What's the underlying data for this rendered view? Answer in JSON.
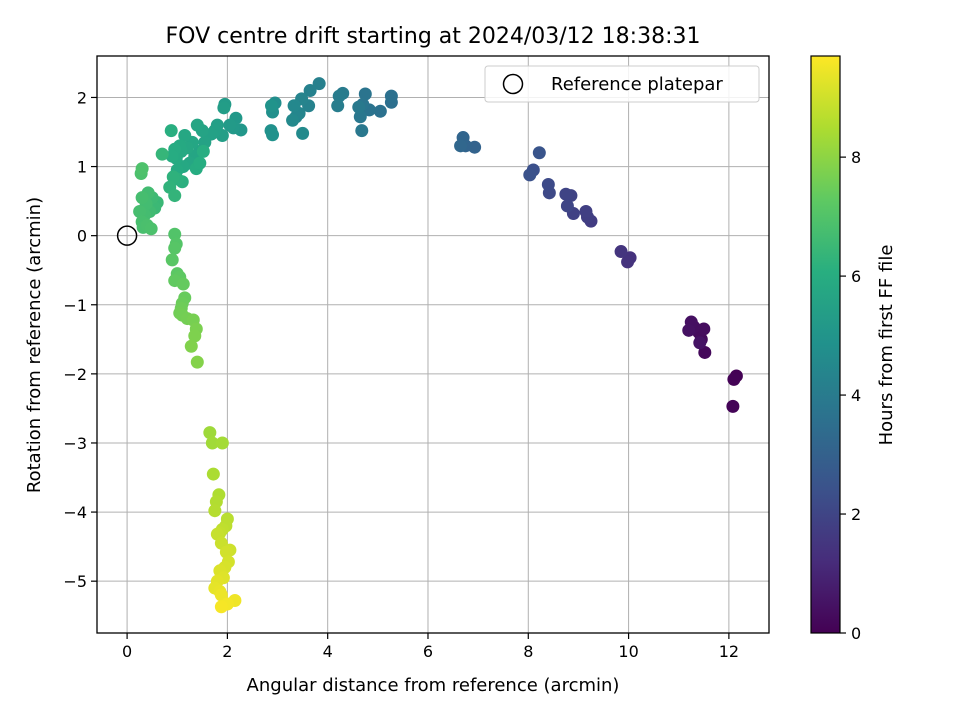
{
  "chart_data": {
    "type": "scatter",
    "title": "FOV centre drift starting at 2024/03/12 18:38:31",
    "xlabel": "Angular distance from reference (arcmin)",
    "ylabel": "Rotation from reference (arcmin)",
    "xlim": [
      -0.6,
      12.8
    ],
    "ylim": [
      -5.75,
      2.6
    ],
    "xticks": [
      0,
      2,
      4,
      6,
      8,
      10,
      12
    ],
    "yticks": [
      -5,
      -4,
      -3,
      -2,
      -1,
      0,
      1,
      2
    ],
    "grid": true,
    "legend": {
      "position": "top-right",
      "entries": [
        "Reference platepar"
      ]
    },
    "reference_point": {
      "label": "Reference platepar",
      "x": 0,
      "y": 0,
      "marker": "hollow-circle"
    },
    "colorbar": {
      "label": "Hours from first FF file",
      "colormap": "viridis",
      "range": [
        0,
        9.7
      ],
      "ticks": [
        0,
        2,
        4,
        6,
        8
      ]
    },
    "points": [
      [
        12.15,
        -2.03,
        0.02
      ],
      [
        12.1,
        -2.08,
        0.05
      ],
      [
        12.08,
        -2.47,
        0.08
      ],
      [
        11.52,
        -1.69,
        0.2
      ],
      [
        11.45,
        -1.5,
        0.25
      ],
      [
        11.4,
        -1.4,
        0.3
      ],
      [
        11.5,
        -1.35,
        0.33
      ],
      [
        11.3,
        -1.32,
        0.36
      ],
      [
        11.25,
        -1.25,
        0.4
      ],
      [
        11.2,
        -1.37,
        0.45
      ],
      [
        11.42,
        -1.55,
        0.5
      ],
      [
        10.03,
        -0.32,
        1.4
      ],
      [
        9.98,
        -0.38,
        1.45
      ],
      [
        9.85,
        -0.23,
        1.5
      ],
      [
        9.25,
        0.21,
        1.75
      ],
      [
        9.18,
        0.27,
        1.8
      ],
      [
        9.15,
        0.35,
        1.85
      ],
      [
        8.9,
        0.32,
        1.9
      ],
      [
        8.85,
        0.58,
        1.95
      ],
      [
        8.75,
        0.6,
        2.0
      ],
      [
        8.78,
        0.43,
        2.05
      ],
      [
        8.42,
        0.62,
        2.15
      ],
      [
        8.4,
        0.74,
        2.2
      ],
      [
        8.1,
        0.95,
        2.4
      ],
      [
        8.03,
        0.88,
        2.45
      ],
      [
        8.22,
        1.2,
        2.55
      ],
      [
        6.93,
        1.28,
        3.1
      ],
      [
        6.75,
        1.3,
        3.15
      ],
      [
        6.7,
        1.42,
        3.2
      ],
      [
        6.65,
        1.3,
        3.25
      ],
      [
        5.27,
        1.93,
        3.55
      ],
      [
        5.27,
        2.02,
        3.6
      ],
      [
        5.05,
        1.8,
        3.65
      ],
      [
        4.83,
        1.82,
        3.7
      ],
      [
        4.75,
        2.05,
        3.75
      ],
      [
        4.7,
        1.9,
        3.8
      ],
      [
        4.65,
        1.72,
        3.85
      ],
      [
        4.68,
        1.52,
        3.9
      ],
      [
        4.62,
        1.86,
        3.95
      ],
      [
        4.3,
        2.06,
        4.0
      ],
      [
        4.23,
        2.02,
        4.05
      ],
      [
        4.2,
        1.88,
        4.1
      ],
      [
        3.83,
        2.2,
        4.2
      ],
      [
        3.65,
        2.1,
        4.25
      ],
      [
        3.62,
        1.88,
        4.3
      ],
      [
        3.48,
        1.98,
        4.35
      ],
      [
        3.43,
        1.77,
        4.4
      ],
      [
        3.37,
        1.72,
        4.45
      ],
      [
        3.33,
        1.88,
        4.5
      ],
      [
        3.3,
        1.67,
        4.55
      ],
      [
        3.5,
        1.48,
        4.6
      ],
      [
        2.95,
        1.92,
        4.75
      ],
      [
        2.9,
        1.79,
        4.8
      ],
      [
        2.87,
        1.52,
        4.85
      ],
      [
        2.9,
        1.46,
        4.9
      ],
      [
        2.88,
        1.88,
        4.95
      ],
      [
        2.27,
        1.53,
        5.1
      ],
      [
        2.17,
        1.7,
        5.15
      ],
      [
        2.12,
        1.56,
        5.2
      ],
      [
        2.05,
        1.6,
        5.25
      ],
      [
        1.95,
        1.9,
        5.3
      ],
      [
        1.93,
        1.85,
        5.35
      ],
      [
        1.9,
        1.45,
        5.4
      ],
      [
        1.8,
        1.6,
        5.45
      ],
      [
        1.75,
        1.52,
        5.5
      ],
      [
        1.68,
        1.47,
        5.55
      ],
      [
        1.55,
        1.35,
        5.6
      ],
      [
        1.5,
        1.52,
        5.62
      ],
      [
        1.45,
        1.22,
        5.65
      ],
      [
        1.4,
        1.6,
        5.7
      ],
      [
        1.35,
        1.15,
        5.72
      ],
      [
        1.3,
        1.35,
        5.75
      ],
      [
        1.25,
        1.05,
        5.78
      ],
      [
        1.2,
        1.27,
        5.8
      ],
      [
        1.15,
        1.45,
        5.82
      ],
      [
        1.12,
        1.0,
        5.85
      ],
      [
        1.08,
        1.22,
        5.88
      ],
      [
        1.05,
        1.3,
        5.9
      ],
      [
        1.0,
        0.95,
        5.92
      ],
      [
        0.98,
        1.12,
        5.95
      ],
      [
        0.95,
        1.25,
        5.98
      ],
      [
        0.9,
        1.15,
        6.0
      ],
      [
        1.38,
        0.97,
        6.02
      ],
      [
        1.45,
        1.05,
        6.05
      ],
      [
        1.52,
        1.22,
        6.08
      ],
      [
        0.88,
        1.52,
        6.1
      ],
      [
        1.1,
        0.78,
        6.15
      ],
      [
        1.0,
        0.82,
        6.2
      ],
      [
        0.92,
        0.85,
        6.25
      ],
      [
        0.85,
        0.7,
        6.3
      ],
      [
        0.95,
        0.58,
        6.35
      ],
      [
        0.7,
        1.18,
        6.4
      ],
      [
        0.6,
        0.48,
        6.5
      ],
      [
        0.55,
        0.4,
        6.55
      ],
      [
        0.5,
        0.55,
        6.6
      ],
      [
        0.45,
        0.35,
        6.65
      ],
      [
        0.42,
        0.62,
        6.7
      ],
      [
        0.38,
        0.46,
        6.72
      ],
      [
        0.35,
        0.3,
        6.75
      ],
      [
        0.3,
        0.55,
        6.78
      ],
      [
        0.25,
        0.35,
        6.8
      ],
      [
        0.3,
        0.2,
        6.82
      ],
      [
        0.32,
        0.12,
        6.85
      ],
      [
        0.4,
        0.15,
        6.88
      ],
      [
        0.48,
        0.1,
        6.9
      ],
      [
        0.28,
        0.9,
        6.92
      ],
      [
        0.3,
        0.97,
        6.95
      ],
      [
        0.95,
        0.02,
        7.05
      ],
      [
        0.98,
        -0.12,
        7.1
      ],
      [
        0.95,
        -0.18,
        7.15
      ],
      [
        0.9,
        -0.35,
        7.2
      ],
      [
        1.0,
        -0.55,
        7.25
      ],
      [
        1.05,
        -0.6,
        7.3
      ],
      [
        0.95,
        -0.65,
        7.35
      ],
      [
        1.12,
        -0.7,
        7.4
      ],
      [
        1.15,
        -0.9,
        7.45
      ],
      [
        1.1,
        -0.98,
        7.5
      ],
      [
        1.08,
        -1.05,
        7.55
      ],
      [
        1.05,
        -1.12,
        7.6
      ],
      [
        1.1,
        -1.15,
        7.62
      ],
      [
        1.2,
        -1.2,
        7.65
      ],
      [
        1.32,
        -1.22,
        7.7
      ],
      [
        1.38,
        -1.35,
        7.75
      ],
      [
        1.35,
        -1.45,
        7.8
      ],
      [
        1.28,
        -1.6,
        7.85
      ],
      [
        1.4,
        -1.83,
        7.9
      ],
      [
        1.65,
        -2.85,
        8.3
      ],
      [
        1.7,
        -3.0,
        8.35
      ],
      [
        1.9,
        -3.0,
        8.4
      ],
      [
        1.72,
        -3.45,
        8.5
      ],
      [
        1.83,
        -3.75,
        8.55
      ],
      [
        1.78,
        -3.85,
        8.6
      ],
      [
        1.75,
        -3.98,
        8.65
      ],
      [
        2.0,
        -4.1,
        8.7
      ],
      [
        1.97,
        -4.2,
        8.75
      ],
      [
        1.9,
        -4.25,
        8.8
      ],
      [
        1.85,
        -4.3,
        8.85
      ],
      [
        1.8,
        -4.32,
        8.9
      ],
      [
        1.88,
        -4.45,
        8.95
      ],
      [
        2.05,
        -4.55,
        9.0
      ],
      [
        1.98,
        -4.58,
        9.05
      ],
      [
        2.02,
        -4.72,
        9.1
      ],
      [
        1.95,
        -4.8,
        9.15
      ],
      [
        1.85,
        -4.85,
        9.2
      ],
      [
        1.92,
        -4.95,
        9.25
      ],
      [
        1.8,
        -5.0,
        9.3
      ],
      [
        1.75,
        -5.1,
        9.35
      ],
      [
        1.85,
        -5.15,
        9.4
      ],
      [
        1.88,
        -5.2,
        9.45
      ],
      [
        2.15,
        -5.28,
        9.5
      ],
      [
        2.0,
        -5.33,
        9.55
      ],
      [
        1.88,
        -5.37,
        9.6
      ]
    ]
  }
}
